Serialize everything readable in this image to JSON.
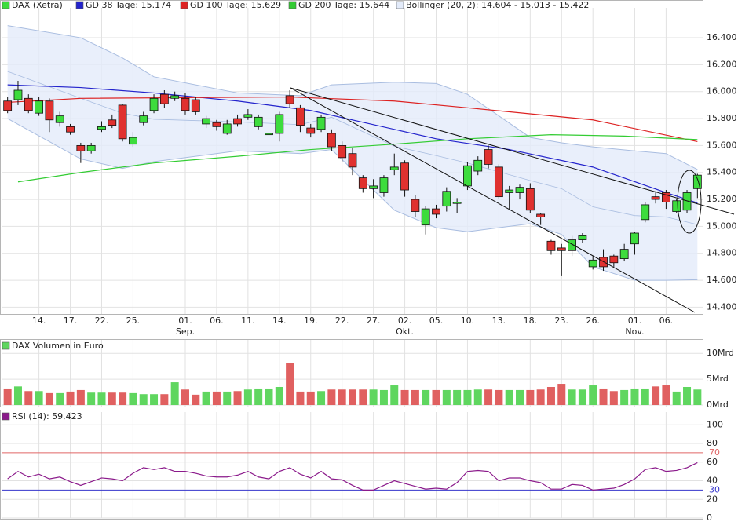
{
  "chart_data": [
    {
      "type": "candlestick",
      "name": "DAX (Xetra)",
      "up_color": "#3ddc3d",
      "down_color": "#e0312f",
      "grid": true,
      "categories": [
        null,
        null,
        null,
        "14.",
        null,
        null,
        "17.",
        null,
        null,
        "22.",
        null,
        null,
        "25.",
        null,
        null,
        null,
        null,
        "01.",
        null,
        null,
        "06.",
        null,
        null,
        "11.",
        null,
        null,
        "14.",
        null,
        null,
        "19.",
        null,
        null,
        "22.",
        null,
        null,
        "27.",
        null,
        null,
        "02.",
        null,
        null,
        "05.",
        null,
        null,
        "10.",
        null,
        null,
        "13.",
        null,
        null,
        "18.",
        null,
        null,
        "23.",
        null,
        null,
        "26.",
        null,
        null,
        null,
        "01.",
        null,
        null,
        "06.",
        null,
        null,
        null
      ],
      "month_labels": [
        null,
        null,
        null,
        null,
        null,
        null,
        null,
        null,
        null,
        null,
        null,
        null,
        null,
        null,
        null,
        null,
        null,
        "Sep.",
        null,
        null,
        null,
        null,
        null,
        null,
        null,
        null,
        null,
        null,
        null,
        null,
        null,
        null,
        null,
        null,
        null,
        null,
        null,
        null,
        "Okt.",
        null,
        null,
        null,
        null,
        null,
        null,
        null,
        null,
        null,
        null,
        null,
        null,
        null,
        null,
        null,
        null,
        null,
        null,
        null,
        null,
        null,
        "Nov.",
        null,
        null,
        null,
        null,
        null,
        null
      ],
      "open": [
        15930,
        15940,
        15950,
        15840,
        15930,
        15770,
        15740,
        15600,
        15560,
        15720,
        15790,
        15900,
        15610,
        15770,
        15860,
        15980,
        15950,
        15950,
        15940,
        15760,
        15770,
        15690,
        15800,
        15810,
        15740,
        15680,
        15690,
        15970,
        15880,
        15730,
        15720,
        15690,
        15600,
        15540,
        15360,
        15280,
        15250,
        15420,
        15470,
        15200,
        15010,
        15130,
        15150,
        15170,
        15300,
        15410,
        15570,
        15440,
        15250,
        15250,
        15280,
        15090,
        14890,
        14840,
        14820,
        14900,
        14700,
        14770,
        14780,
        14760,
        14870,
        15050,
        15220,
        15250,
        15110,
        15120,
        15280
      ],
      "high": [
        15960,
        16080,
        15980,
        15960,
        15950,
        15850,
        15760,
        15620,
        15620,
        15780,
        15830,
        15910,
        15700,
        15850,
        15980,
        16010,
        16000,
        15990,
        15960,
        15820,
        15790,
        15790,
        15830,
        15870,
        15830,
        15720,
        15850,
        16010,
        15900,
        15760,
        15830,
        15720,
        15630,
        15580,
        15380,
        15350,
        15380,
        15540,
        15490,
        15230,
        15150,
        15160,
        15290,
        15210,
        15480,
        15520,
        15600,
        15460,
        15300,
        15310,
        15320,
        15100,
        14900,
        14870,
        14930,
        14950,
        14780,
        14830,
        14790,
        14870,
        14960,
        15180,
        15260,
        15270,
        15200,
        15270,
        15390
      ],
      "low": [
        15840,
        15900,
        15840,
        15820,
        15700,
        15740,
        15680,
        15470,
        15540,
        15700,
        15730,
        15630,
        15590,
        15750,
        15840,
        15880,
        15930,
        15830,
        15830,
        15730,
        15710,
        15680,
        15740,
        15790,
        15720,
        15610,
        15630,
        15880,
        15700,
        15660,
        15700,
        15560,
        15480,
        15380,
        15250,
        15210,
        15220,
        15380,
        15220,
        15070,
        14940,
        15060,
        15110,
        15100,
        15270,
        15380,
        15430,
        15200,
        15130,
        15200,
        15100,
        15010,
        14790,
        14630,
        14780,
        14880,
        14680,
        14670,
        14700,
        14740,
        14790,
        15030,
        15170,
        15130,
        15100,
        15100,
        15210
      ],
      "close": [
        15860,
        16010,
        15860,
        15930,
        15790,
        15820,
        15700,
        15560,
        15600,
        15740,
        15750,
        15650,
        15660,
        15820,
        15950,
        15910,
        15970,
        15860,
        15850,
        15800,
        15740,
        15760,
        15760,
        15830,
        15810,
        15690,
        15830,
        15910,
        15750,
        15690,
        15810,
        15590,
        15510,
        15440,
        15280,
        15300,
        15360,
        15440,
        15270,
        15110,
        15130,
        15090,
        15260,
        15180,
        15450,
        15490,
        15460,
        15220,
        15270,
        15290,
        15120,
        15070,
        14820,
        14820,
        14900,
        14930,
        14750,
        14700,
        14730,
        14830,
        14950,
        15160,
        15200,
        15180,
        15190,
        15250,
        15380
      ],
      "ylim": [
        14350,
        16575
      ],
      "yticks": [
        {
          "value": 14400,
          "label": "14.400"
        },
        {
          "value": 14600,
          "label": "14.600"
        },
        {
          "value": 14800,
          "label": "14.800"
        },
        {
          "value": 15000,
          "label": "15.000"
        },
        {
          "value": 15200,
          "label": "15.200"
        },
        {
          "value": 15400,
          "label": "15.400"
        },
        {
          "value": 15600,
          "label": "15.600"
        },
        {
          "value": 15800,
          "label": "15.800"
        },
        {
          "value": 16000,
          "label": "16.000"
        },
        {
          "value": 16200,
          "label": "16.200"
        },
        {
          "value": 16400,
          "label": "16.400"
        }
      ],
      "bands": {
        "name": "Bollinger (20, 2): 14.604 - 15.013 - 15.422",
        "color": "#a9bde0",
        "fill": "#e3ebfa",
        "x": [
          0,
          7,
          11,
          14,
          22,
          28,
          31,
          37,
          41,
          44,
          50,
          53,
          56,
          60,
          63,
          66
        ],
        "upper": [
          16490,
          16400,
          16250,
          16110,
          15990,
          15970,
          16050,
          16070,
          16060,
          15980,
          15660,
          15620,
          15590,
          15560,
          15540,
          15422
        ],
        "middle": [
          16150,
          15950,
          15840,
          15795,
          15775,
          15755,
          15810,
          15595,
          15525,
          15470,
          15340,
          15280,
          15145,
          15080,
          15070,
          15013
        ],
        "lower": [
          15800,
          15500,
          15430,
          15480,
          15560,
          15540,
          15570,
          15120,
          14990,
          14960,
          15020,
          14940,
          14700,
          14600,
          14600,
          14604
        ]
      },
      "lines": [
        {
          "name": "GD 38 Tage: 15.174",
          "color": "#2323cc",
          "x": [
            0,
            7,
            14,
            22,
            29,
            33,
            41,
            48,
            56,
            63,
            66
          ],
          "values": [
            16050,
            16030,
            15990,
            15930,
            15860,
            15790,
            15650,
            15570,
            15440,
            15250,
            15174
          ]
        },
        {
          "name": "GD 100 Tage: 15.629",
          "color": "#dd2222",
          "x": [
            0,
            7,
            27,
            37,
            44,
            56,
            66
          ],
          "values": [
            15920,
            15950,
            15960,
            15930,
            15880,
            15790,
            15629
          ]
        },
        {
          "name": "GD 200 Tage: 15.644",
          "color": "#33cc33",
          "x": [
            1,
            7,
            14,
            22,
            29,
            37,
            44,
            52,
            59,
            66
          ],
          "values": [
            15330,
            15400,
            15470,
            15520,
            15570,
            15610,
            15650,
            15680,
            15670,
            15644
          ]
        }
      ]
    },
    {
      "type": "bar",
      "name": "DAX Volumen in Euro",
      "up_color": "#5fd65f",
      "down_color": "#e06060",
      "values": [
        3.2,
        3.6,
        2.7,
        2.7,
        2.3,
        2.3,
        2.6,
        2.9,
        2.4,
        2.4,
        2.4,
        2.4,
        2.3,
        2.1,
        2.1,
        2.1,
        4.4,
        3.0,
        2.0,
        2.6,
        2.6,
        2.6,
        2.7,
        3.0,
        3.2,
        3.2,
        3.5,
        8.2,
        2.6,
        2.6,
        2.7,
        3.0,
        3.0,
        3.0,
        3.0,
        3.0,
        2.9,
        3.8,
        2.9,
        2.9,
        2.9,
        2.9,
        2.9,
        2.9,
        2.9,
        3.0,
        3.0,
        2.9,
        2.9,
        2.9,
        2.9,
        3.0,
        3.5,
        4.1,
        3.0,
        3.0,
        3.8,
        3.2,
        2.7,
        2.9,
        3.2,
        3.2,
        3.6,
        3.8,
        2.6,
        3.5,
        3.0
      ],
      "ylim": [
        -0.3,
        11.4
      ],
      "yticks": [
        {
          "value": 0,
          "label": "0Mrd"
        },
        {
          "value": 5,
          "label": "5Mrd"
        },
        {
          "value": 10,
          "label": "10Mrd"
        }
      ]
    },
    {
      "type": "line",
      "name": "RSI (14): 59,423",
      "color": "#8b1a8b",
      "values": [
        42,
        50,
        44,
        47,
        42,
        44,
        39,
        35,
        39,
        43,
        42,
        40,
        48,
        54,
        52,
        54,
        50,
        50,
        48,
        45,
        44,
        44,
        46,
        50,
        44,
        42,
        50,
        54,
        47,
        43,
        50,
        42,
        41,
        35,
        30,
        30,
        35,
        40,
        37,
        34,
        31,
        32,
        31,
        38,
        50,
        51,
        50,
        40,
        43,
        43,
        40,
        38,
        31,
        31,
        36,
        35,
        30,
        31,
        32,
        36,
        42,
        52,
        54,
        50,
        51,
        54,
        59.423
      ],
      "ylim": [
        0,
        107
      ],
      "yticks": [
        0,
        20,
        40,
        60,
        80,
        100
      ],
      "levels": [
        70,
        30
      ],
      "level_colors": [
        "#e06666",
        "#3535cc"
      ]
    }
  ]
}
